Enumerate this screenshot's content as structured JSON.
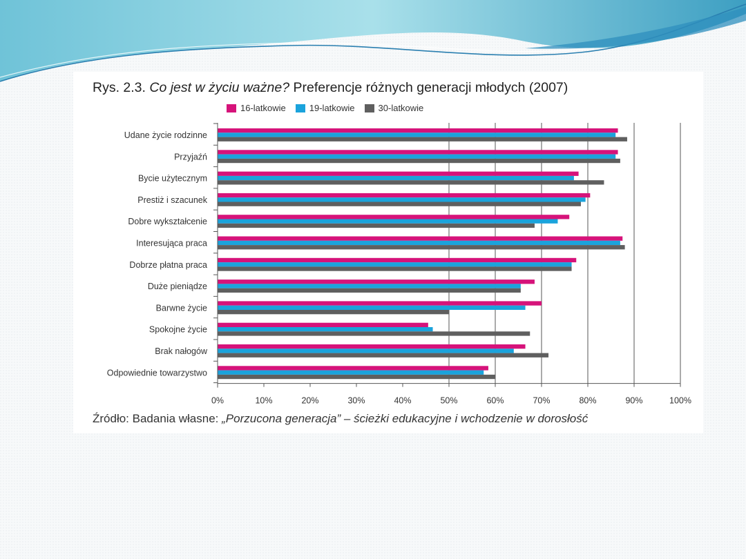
{
  "colors": {
    "series_16": "#d6137a",
    "series_19": "#1ba3dc",
    "series_30": "#5f5f5f",
    "wave_light": "#a8dde6",
    "wave_dark": "#3a9cc0"
  },
  "header": {
    "title_prefix": "Rys. 2.3.",
    "title_italic": "Co jest w życiu ważne?",
    "title_rest": "Preferencje różnych generacji młodych (2007)"
  },
  "footer": {
    "source_prefix": "Źródło: Badania własne:",
    "source_italic": "„Porzucona generacja” – ścieżki edukacyjne i wchodzenie w dorosłość"
  },
  "chart_data": {
    "type": "bar",
    "orientation": "horizontal",
    "categories": [
      "Udane życie rodzinne",
      "Przyjaźń",
      "Bycie użytecznym",
      "Prestiż i szacunek",
      "Dobre wykształcenie",
      "Interesująca praca",
      "Dobrze płatna praca",
      "Duże pieniądze",
      "Barwne życie",
      "Spokojne życie",
      "Brak nałogów",
      "Odpowiednie towarzystwo"
    ],
    "series": [
      {
        "name": "16-latkowie",
        "values": [
          86.5,
          86.5,
          78,
          80.5,
          76,
          87.5,
          77.5,
          68.5,
          70,
          45.5,
          66.5,
          58.5
        ]
      },
      {
        "name": "19-latkowie",
        "values": [
          86,
          86,
          77,
          79.5,
          73.5,
          87,
          76.5,
          65.5,
          66.5,
          46.5,
          64,
          57.5
        ]
      },
      {
        "name": "30-latkowie",
        "values": [
          88.5,
          87,
          83.5,
          78.5,
          68.5,
          88,
          76.5,
          65.5,
          50,
          67.5,
          71.5,
          60
        ]
      }
    ],
    "xlim": [
      0,
      100
    ],
    "ticks": [
      "0%",
      "10%",
      "20%",
      "30%",
      "40%",
      "50%",
      "60%",
      "70%",
      "80%",
      "90%",
      "100%"
    ],
    "grid": "vertical lines at 50%, 60%, 70%, 80%, 90%, 100%",
    "legend": "top"
  }
}
